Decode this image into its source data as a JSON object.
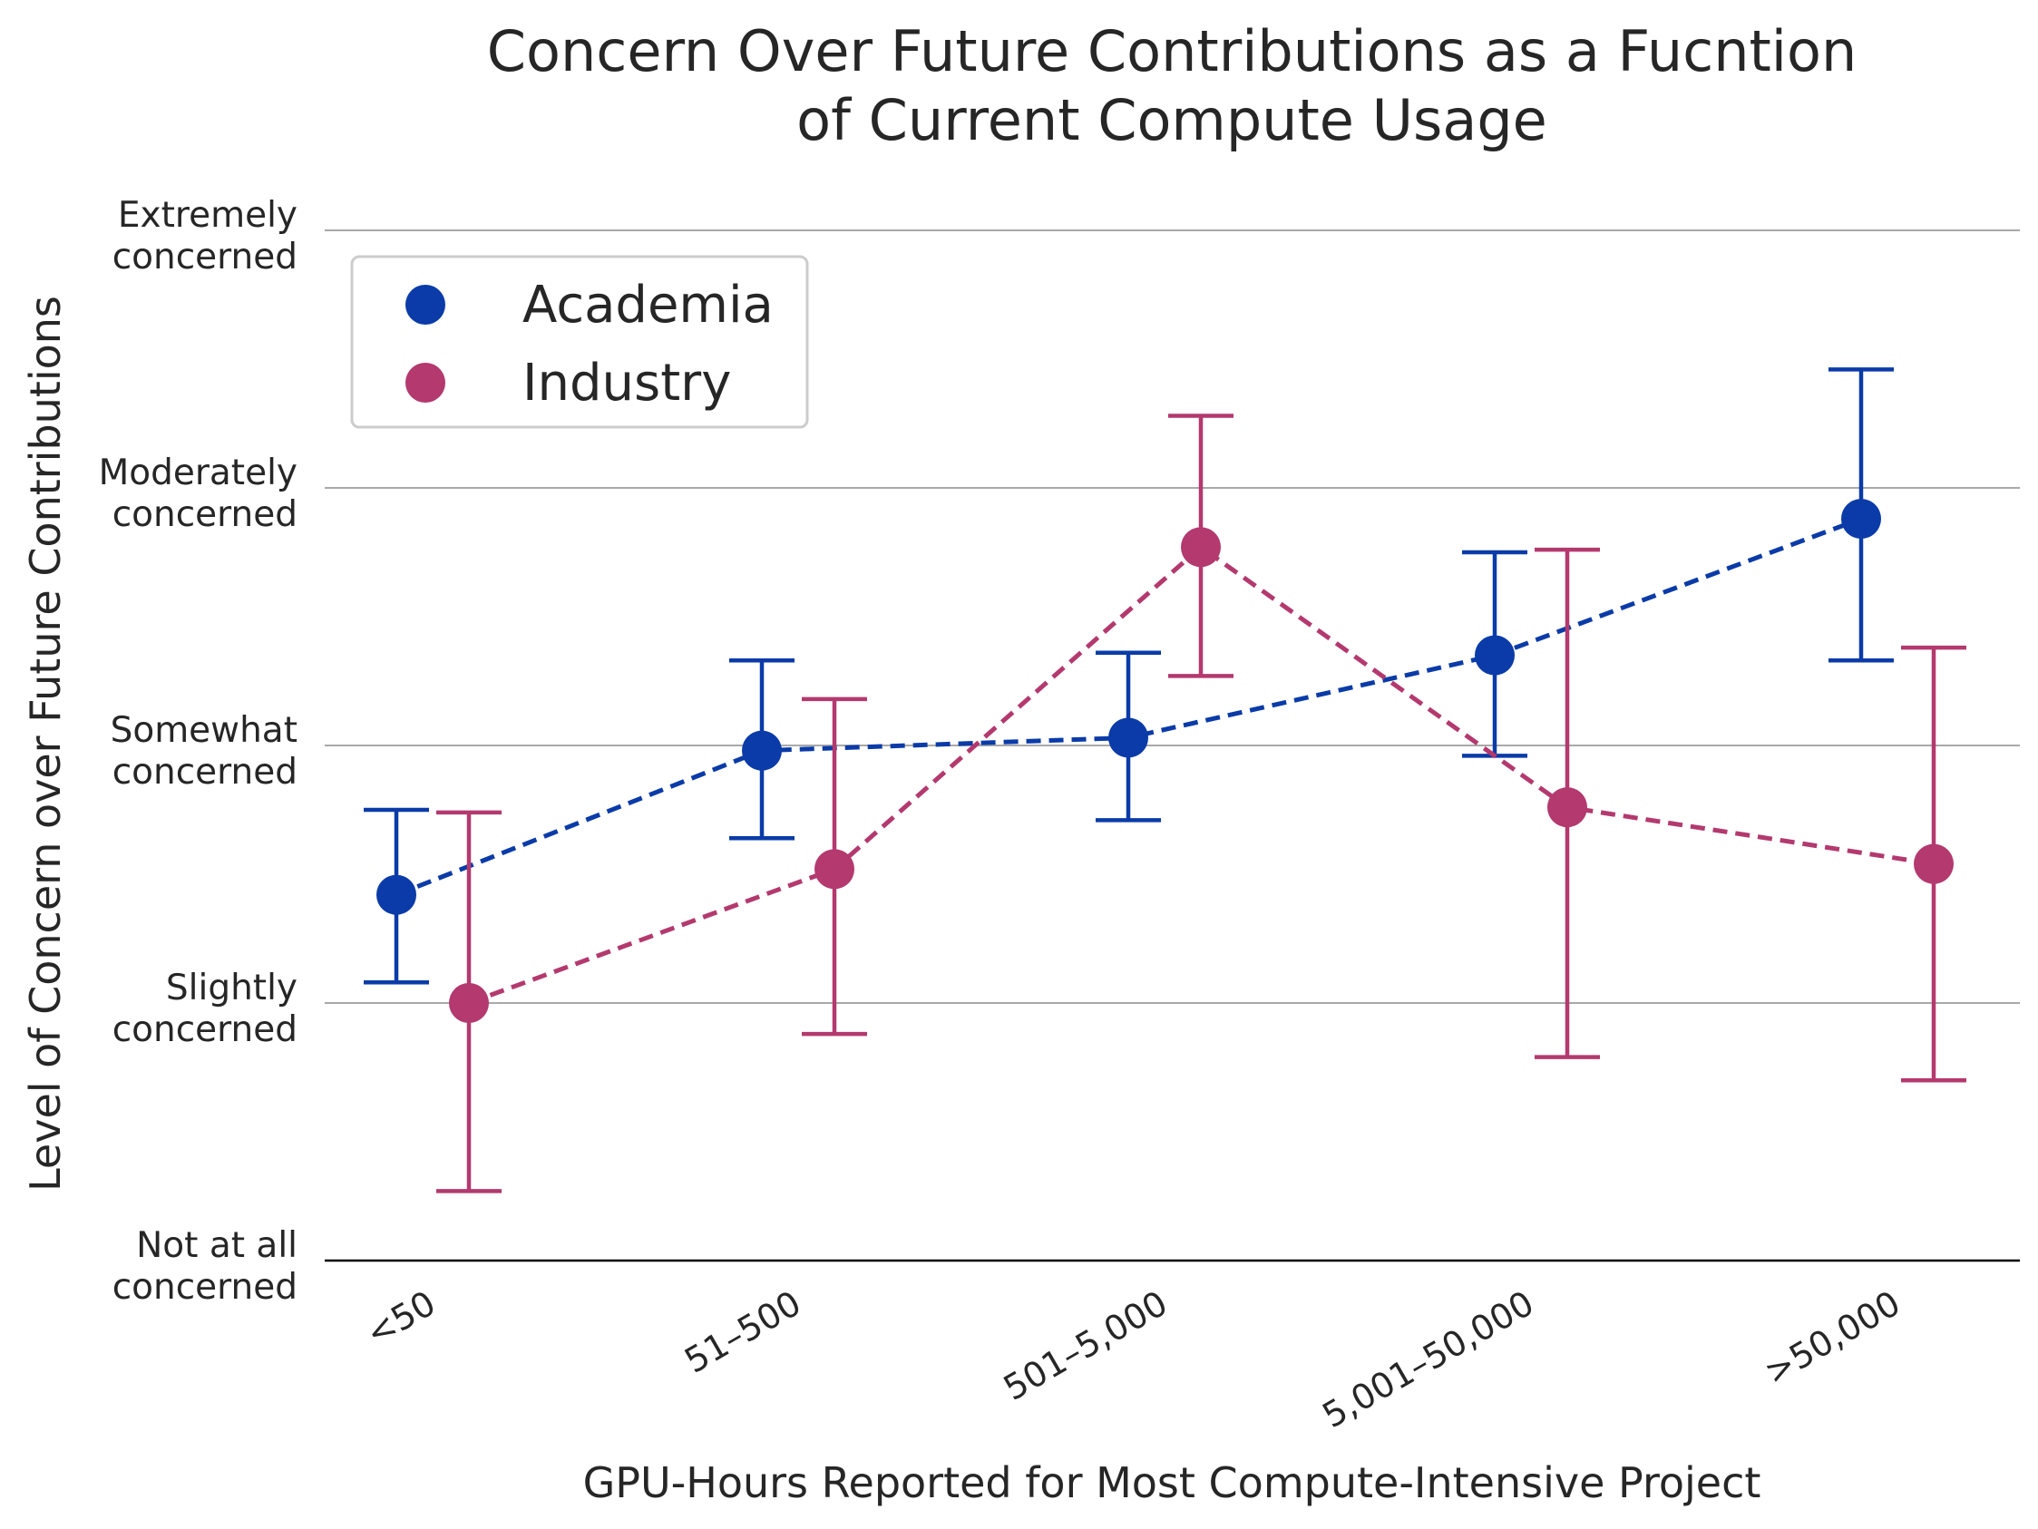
{
  "chart_data": {
    "type": "scatter",
    "title": "Concern Over Future Contributions as a Fucntion\nof Current Compute Usage",
    "xlabel": "GPU-Hours Reported for Most Compute-Intensive Project",
    "ylabel": "Level of Concern over Future Contributions",
    "categories": [
      "<50",
      "51–500",
      "501–5,000",
      "5,001–50,000",
      ">50,000"
    ],
    "y_tick_values": [
      0,
      1,
      2,
      3,
      4
    ],
    "y_tick_labels": [
      "Not at all\nconcerned",
      "Slightly\nconcerned",
      "Somewhat\nconcerned",
      "Moderately\nconcerned",
      "Extremely\nconcerned"
    ],
    "ylim": [
      0,
      4
    ],
    "grid": "horizontal",
    "legend_position": "top-left",
    "series": [
      {
        "name": "Academia",
        "color": "#0A3BA8",
        "values": [
          1.42,
          1.98,
          2.03,
          2.35,
          2.88
        ],
        "err_low": [
          1.08,
          1.64,
          1.71,
          1.96,
          2.33
        ],
        "err_high": [
          1.75,
          2.33,
          2.36,
          2.75,
          3.46
        ]
      },
      {
        "name": "Industry",
        "color": "#B3396E",
        "values": [
          1.0,
          1.52,
          2.77,
          1.76,
          1.54
        ],
        "err_low": [
          0.27,
          0.88,
          2.27,
          0.79,
          0.7
        ],
        "err_high": [
          1.74,
          2.18,
          3.28,
          2.76,
          2.38
        ]
      }
    ]
  }
}
